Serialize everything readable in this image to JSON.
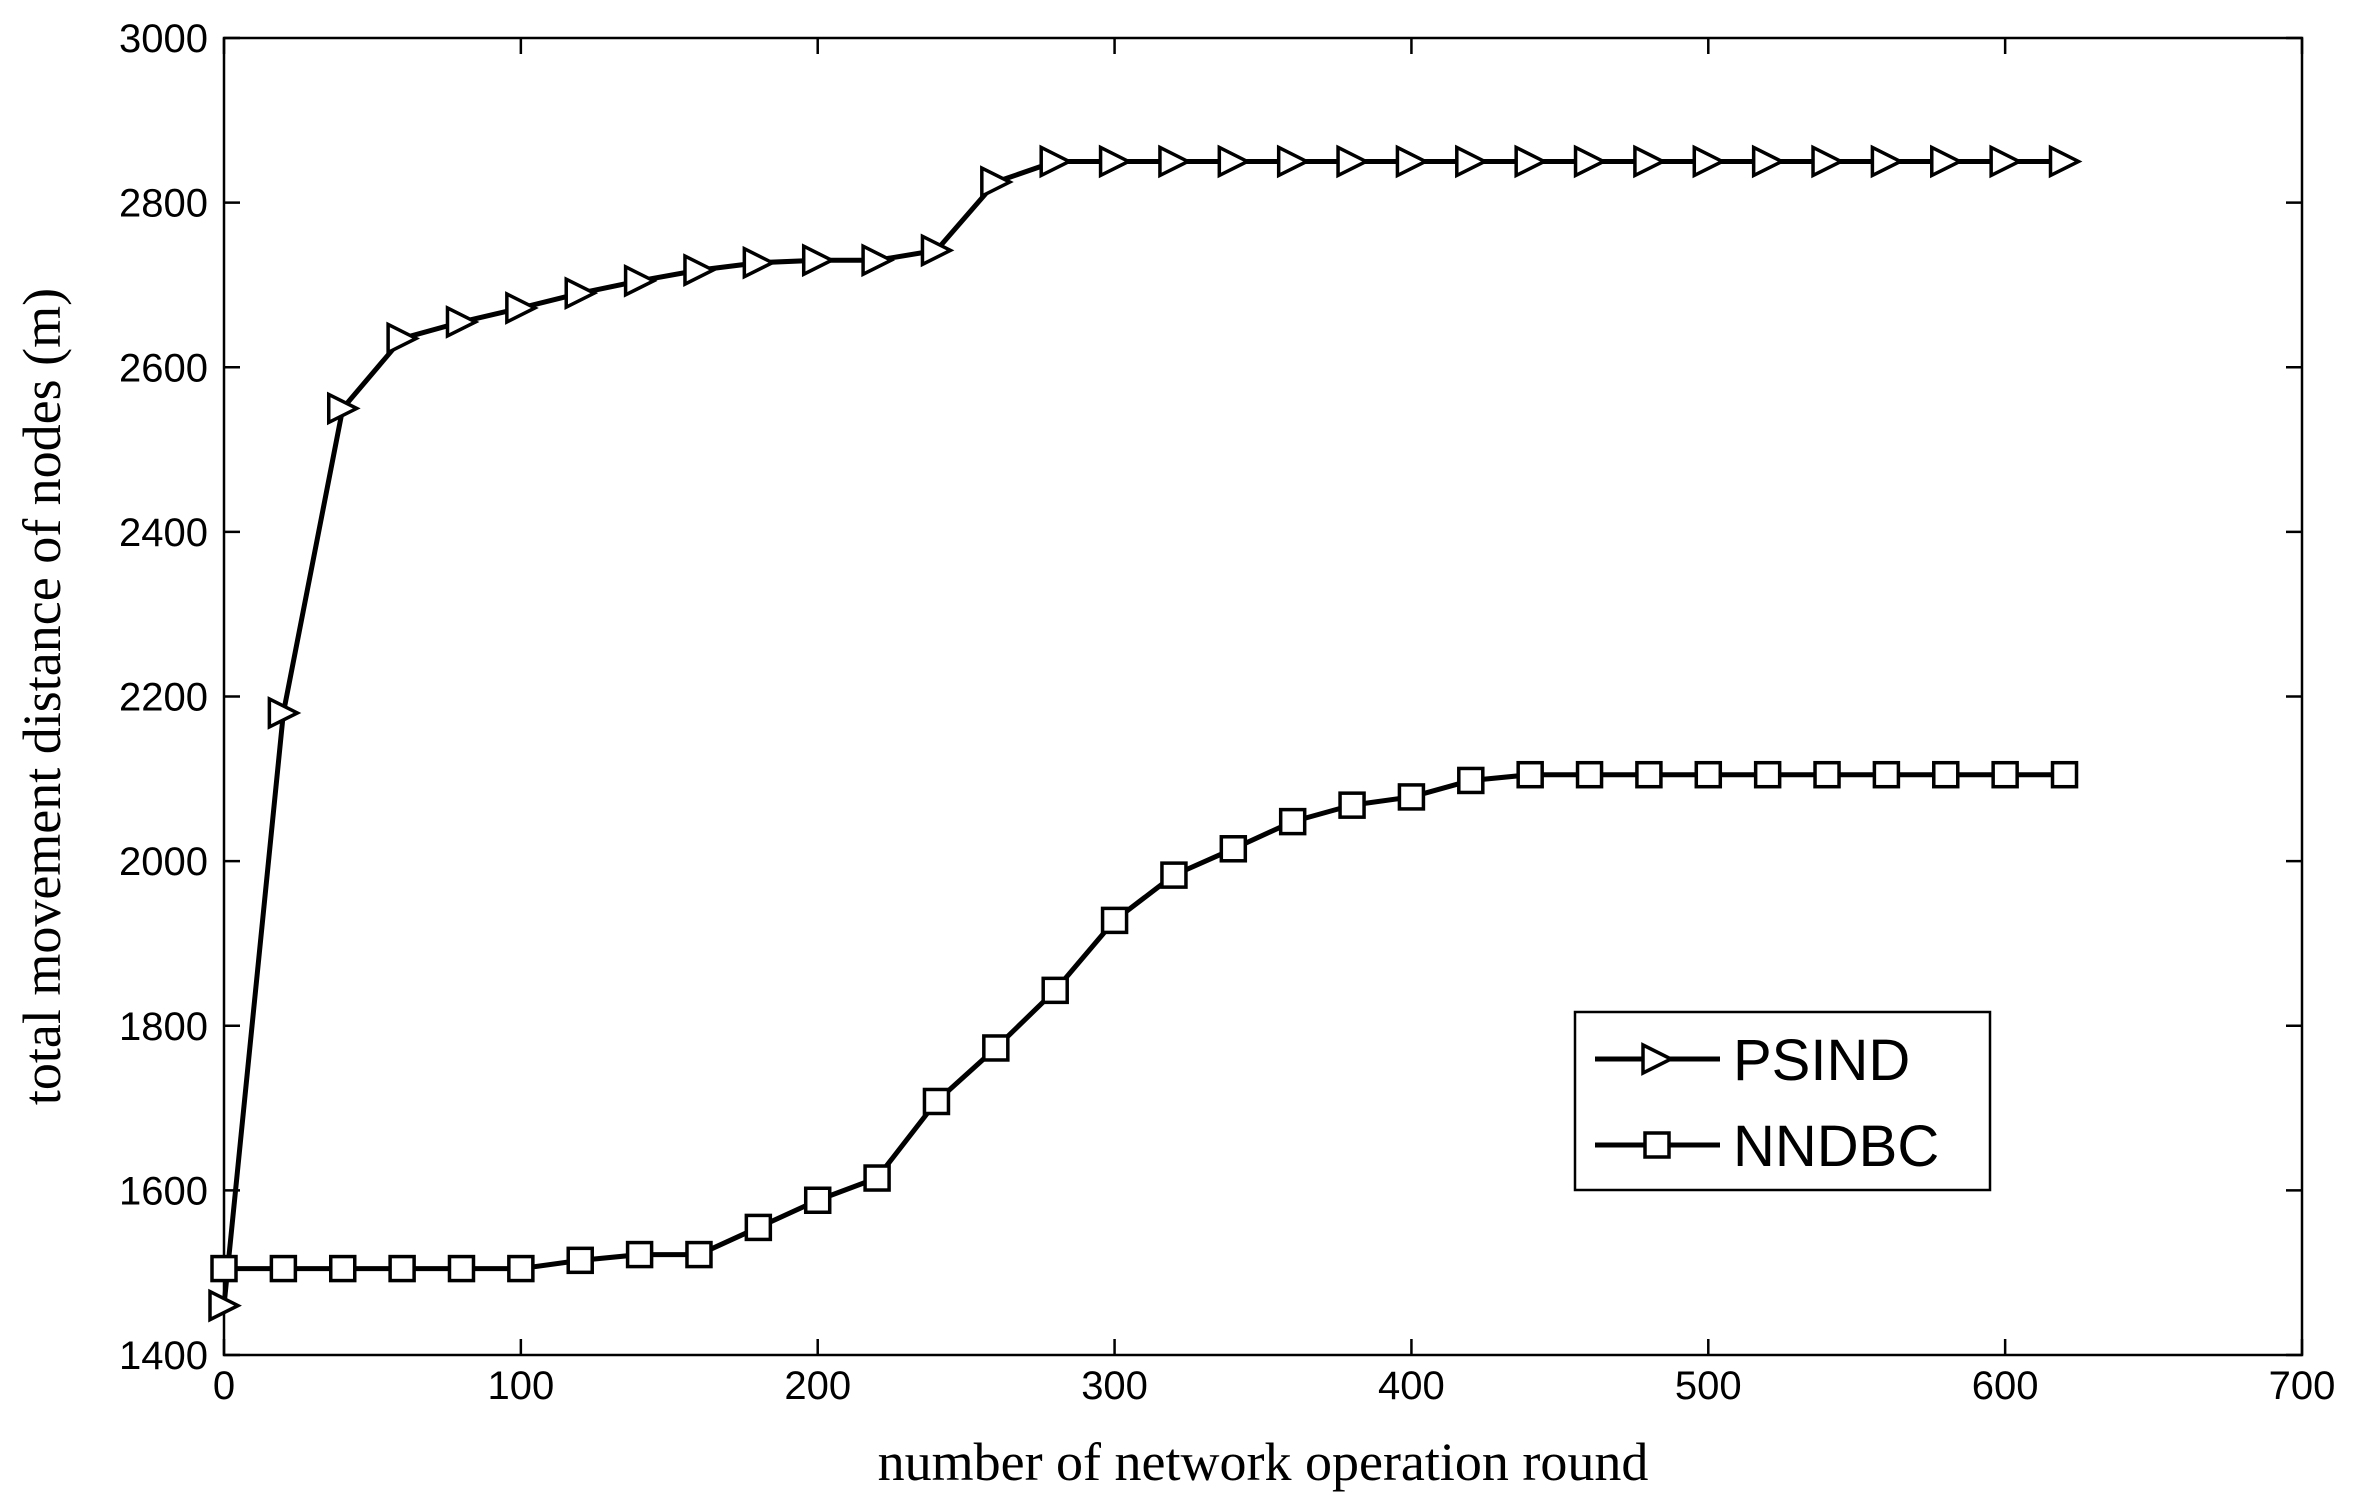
{
  "chart_data": {
    "type": "line",
    "title": "",
    "xlabel": "number of network operation round",
    "ylabel": "total movement distance of nodes (m)",
    "xlim": [
      0,
      700
    ],
    "ylim": [
      1400,
      3000
    ],
    "xticks": [
      0,
      100,
      200,
      300,
      400,
      500,
      600,
      700
    ],
    "yticks": [
      1400,
      1600,
      1800,
      2000,
      2200,
      2400,
      2600,
      2800,
      3000
    ],
    "grid": false,
    "legend_position": "bottom-right",
    "series": [
      {
        "name": "PSIND",
        "marker": "triangle-right",
        "color": "#000000",
        "x": [
          0,
          20,
          40,
          60,
          80,
          100,
          120,
          140,
          160,
          180,
          200,
          220,
          240,
          260,
          280,
          300,
          320,
          340,
          360,
          380,
          400,
          420,
          440,
          460,
          480,
          500,
          520,
          540,
          560,
          580,
          600,
          620
        ],
        "y": [
          1460,
          2180,
          2550,
          2635,
          2655,
          2672,
          2690,
          2705,
          2718,
          2727,
          2730,
          2730,
          2742,
          2825,
          2850,
          2850,
          2850,
          2850,
          2850,
          2850,
          2850,
          2850,
          2850,
          2850,
          2850,
          2850,
          2850,
          2850,
          2850,
          2850,
          2850,
          2850
        ]
      },
      {
        "name": "NNDBC",
        "marker": "square",
        "color": "#000000",
        "x": [
          0,
          20,
          40,
          60,
          80,
          100,
          120,
          140,
          160,
          180,
          200,
          220,
          240,
          260,
          280,
          300,
          320,
          340,
          360,
          380,
          400,
          420,
          440,
          460,
          480,
          500,
          520,
          540,
          560,
          580,
          600,
          620
        ],
        "y": [
          1505,
          1505,
          1505,
          1505,
          1505,
          1505,
          1515,
          1522,
          1522,
          1555,
          1588,
          1615,
          1708,
          1773,
          1843,
          1928,
          1983,
          2015,
          2048,
          2068,
          2078,
          2098,
          2105,
          2105,
          2105,
          2105,
          2105,
          2105,
          2105,
          2105,
          2105,
          2105
        ]
      }
    ]
  }
}
